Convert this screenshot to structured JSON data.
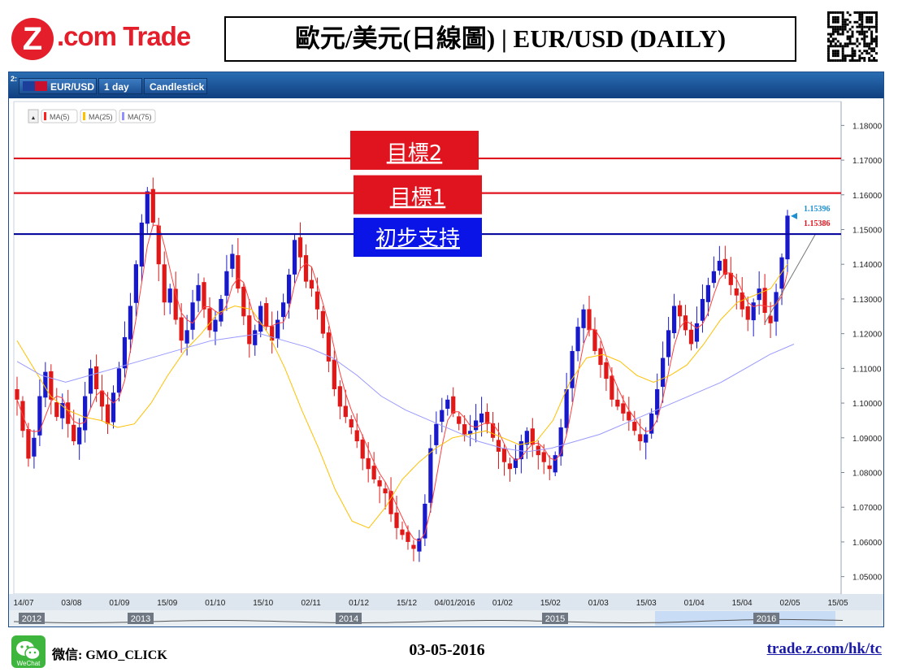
{
  "header": {
    "logo_mark": "Z",
    "logo_text": ".com Trade",
    "title": "歐元/美元(日線圖) | EUR/USD (DAILY)"
  },
  "toolbar": {
    "panel_number": "2:",
    "symbol": "EUR/USD",
    "interval": "1 day",
    "chart_type": "Candlestick"
  },
  "legend": {
    "collapse_glyph": "▲",
    "items": [
      {
        "label": "MA(5)",
        "color": "#ff2020"
      },
      {
        "label": "MA(25)",
        "color": "#ffc000"
      },
      {
        "label": "MA(75)",
        "color": "#9090ff"
      }
    ]
  },
  "annotations": [
    {
      "label": "目標2",
      "price": 1.1705,
      "color": "#e0141e",
      "box_color": "#e0141e"
    },
    {
      "label": "目標1",
      "price": 1.1605,
      "color": "#e0141e",
      "box_color": "#e0141e"
    },
    {
      "label": "初步支持",
      "price": 1.1487,
      "color": "#0a0a9e",
      "box_color": "#0a14e6"
    }
  ],
  "price_tags": [
    {
      "text": "1.15396",
      "color": "#1e8fd0"
    },
    {
      "text": "1.15386",
      "color": "#e0141e"
    }
  ],
  "chart_data": {
    "type": "candlestick",
    "symbol": "EUR/USD",
    "interval": "1 day",
    "y_range": [
      1.045,
      1.185
    ],
    "y_ticks": [
      "1.18000",
      "1.17000",
      "1.16000",
      "1.15000",
      "1.14000",
      "1.13000",
      "1.12000",
      "1.11000",
      "1.10000",
      "1.09000",
      "1.08000",
      "1.07000",
      "1.06000",
      "1.05000"
    ],
    "x_ticks": [
      "14/07",
      "03/08",
      "01/09",
      "15/09",
      "01/10",
      "15/10",
      "02/11",
      "01/12",
      "15/12",
      "04/01/2016",
      "01/02",
      "15/02",
      "01/03",
      "15/03",
      "01/04",
      "15/04",
      "02/05",
      "15/05"
    ],
    "nav_years": [
      "2012",
      "2013",
      "2014",
      "2015",
      "2016"
    ],
    "close_path": [
      1.101,
      1.092,
      1.084,
      1.09,
      1.102,
      1.109,
      1.101,
      1.096,
      1.1,
      1.094,
      1.089,
      1.093,
      1.102,
      1.11,
      1.104,
      1.099,
      1.094,
      1.103,
      1.11,
      1.119,
      1.128,
      1.14,
      1.152,
      1.161,
      1.152,
      1.14,
      1.129,
      1.133,
      1.124,
      1.118,
      1.121,
      1.129,
      1.134,
      1.127,
      1.121,
      1.124,
      1.13,
      1.138,
      1.143,
      1.133,
      1.125,
      1.117,
      1.121,
      1.128,
      1.122,
      1.118,
      1.124,
      1.129,
      1.137,
      1.147,
      1.142,
      1.135,
      1.133,
      1.127,
      1.12,
      1.112,
      1.104,
      1.099,
      1.096,
      1.093,
      1.089,
      1.084,
      1.081,
      1.078,
      1.076,
      1.074,
      1.068,
      1.064,
      1.062,
      1.06,
      1.058,
      1.061,
      1.071,
      1.087,
      1.094,
      1.098,
      1.101,
      1.097,
      1.094,
      1.091,
      1.092,
      1.095,
      1.097,
      1.094,
      1.09,
      1.086,
      1.083,
      1.081,
      1.084,
      1.089,
      1.092,
      1.088,
      1.085,
      1.083,
      1.081,
      1.085,
      1.093,
      1.104,
      1.115,
      1.122,
      1.127,
      1.121,
      1.115,
      1.111,
      1.107,
      1.101,
      1.099,
      1.097,
      1.095,
      1.092,
      1.089,
      1.091,
      1.097,
      1.104,
      1.113,
      1.121,
      1.128,
      1.125,
      1.121,
      1.117,
      1.123,
      1.13,
      1.134,
      1.138,
      1.141,
      1.137,
      1.134,
      1.131,
      1.127,
      1.124,
      1.129,
      1.133,
      1.126,
      1.123,
      1.132,
      1.142,
      1.154
    ],
    "ma25_path": [
      1.118,
      1.11,
      1.102,
      1.098,
      1.096,
      1.095,
      1.093,
      1.094,
      1.1,
      1.108,
      1.115,
      1.12,
      1.126,
      1.128,
      1.127,
      1.12,
      1.11,
      1.098,
      1.087,
      1.075,
      1.066,
      1.064,
      1.07,
      1.078,
      1.083,
      1.087,
      1.09,
      1.091,
      1.092,
      1.09,
      1.088,
      1.089,
      1.095,
      1.106,
      1.113,
      1.114,
      1.112,
      1.108,
      1.106,
      1.108,
      1.111,
      1.117,
      1.124,
      1.129,
      1.131,
      1.133,
      1.14
    ],
    "ma75_path": [
      1.112,
      1.108,
      1.106,
      1.108,
      1.11,
      1.112,
      1.114,
      1.116,
      1.118,
      1.119,
      1.12,
      1.118,
      1.116,
      1.113,
      1.108,
      1.102,
      1.098,
      1.095,
      1.092,
      1.089,
      1.087,
      1.086,
      1.087,
      1.089,
      1.091,
      1.094,
      1.097,
      1.1,
      1.103,
      1.106,
      1.11,
      1.114,
      1.117
    ],
    "last_price": 1.15396
  },
  "footer": {
    "wechat_icon_label": "WeChat",
    "wechat": "微信: GMO_CLICK",
    "date": "03-05-2016",
    "url": "trade.z.com/hk/tc"
  }
}
